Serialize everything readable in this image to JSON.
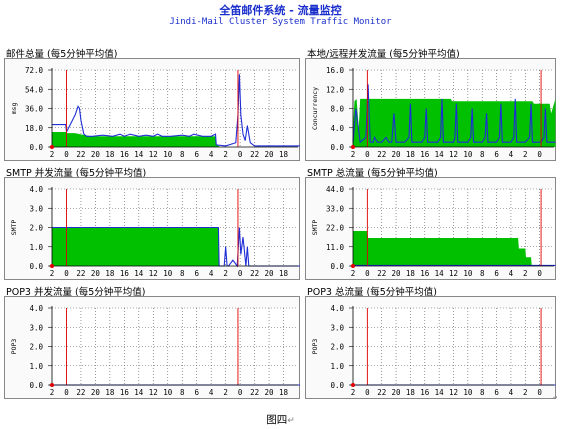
{
  "header": {
    "title": "全笛邮件系统 - 流量监控",
    "subtitle": "Jindi-Mail Cluster System Traffic Monitor"
  },
  "caption": "图四",
  "caption_mark": "↵",
  "corner_mark": "↵",
  "colors": {
    "fill": "#00c000",
    "line": "#1f2fd6",
    "marker": "#e00000",
    "grid": "#555555",
    "plot_bg": "#ffffff",
    "frame": "#888888"
  },
  "panels": [
    {
      "title": "邮件总量 (每5分钟平均值)",
      "ylabel": "msg",
      "ytick_labels": [
        "72.0",
        "54.0",
        "36.0",
        "18.0",
        "0.0"
      ]
    },
    {
      "title": "本地/远程并发流量 (每5分钟平均值)",
      "ylabel": "Concurrency",
      "ytick_labels": [
        "16.0",
        "12.0",
        "8.0",
        "4.0",
        "0.0"
      ]
    },
    {
      "title": "SMTP 并发流量 (每5分钟平均值)",
      "ylabel": "SMTP",
      "ytick_labels": [
        "4.0",
        "3.0",
        "2.0",
        "1.0",
        "0.0"
      ]
    },
    {
      "title": "SMTP 总流量 (每5分钟平均值)",
      "ylabel": "SMTP",
      "ytick_labels": [
        "44.0",
        "33.0",
        "22.0",
        "11.0",
        "0.0"
      ]
    },
    {
      "title": "POP3 并发流量 (每5分钟平均值)",
      "ylabel": "POP3",
      "ytick_labels": [
        "4.0",
        "3.0",
        "2.0",
        "1.0",
        "0.0"
      ]
    },
    {
      "title": "POP3 总流量 (每5分钟平均值)",
      "ylabel": "POP3",
      "ytick_labels": [
        "4.0",
        "3.0",
        "2.0",
        "1.0",
        "0.0"
      ]
    }
  ],
  "chart_data": [
    {
      "type": "area",
      "ylabel": "msg",
      "ylim": [
        0,
        72
      ],
      "grid": true,
      "x_tick_labels": [
        "2",
        "0",
        "22",
        "20",
        "18",
        "16",
        "14",
        "12",
        "10",
        "8",
        "6",
        "4",
        "2",
        "0",
        "22",
        "20",
        "18"
      ],
      "fill": {
        "x": [
          0,
          0.95,
          1,
          1.6,
          1.9,
          2.3,
          2.7,
          3.1,
          4,
          5,
          6,
          7,
          8,
          9,
          10,
          11,
          11.3,
          11.35,
          11.6,
          12,
          13,
          14,
          15,
          16,
          17.3
        ],
        "y": [
          14,
          14,
          13,
          13,
          12,
          11,
          10,
          10,
          10,
          10,
          10,
          10,
          10,
          10,
          10,
          10,
          10,
          3,
          0,
          0,
          0,
          0,
          0,
          0,
          0
        ]
      },
      "line": {
        "x": [
          0,
          0.95,
          1,
          1.3,
          1.6,
          1.8,
          1.9,
          2.0,
          2.2,
          2.4,
          2.8,
          3.5,
          4.2,
          4.7,
          5.0,
          5.4,
          6.0,
          6.5,
          7.0,
          7.3,
          7.6,
          8.2,
          9.0,
          9.5,
          9.8,
          10.4,
          11.0,
          11.3,
          11.35,
          12.0,
          12.7,
          12.85,
          12.95,
          13.05,
          13.2,
          13.35,
          13.5,
          13.7,
          14,
          15,
          16,
          17.3
        ],
        "y": [
          21,
          21,
          14,
          22,
          30,
          38,
          36,
          25,
          12,
          10,
          10,
          11,
          10,
          12,
          10,
          12,
          10,
          11,
          10,
          12,
          10,
          10,
          11,
          10,
          12,
          10,
          10,
          12,
          2,
          1,
          4,
          30,
          68,
          30,
          12,
          6,
          20,
          4,
          1,
          1,
          1,
          1
        ]
      },
      "markers_x": [
        1,
        12.85
      ]
    },
    {
      "type": "area",
      "ylabel": "Concurrency",
      "ylim": [
        0,
        16
      ],
      "grid": true,
      "x_tick_labels": [
        "2",
        "0",
        "22",
        "20",
        "18",
        "16",
        "14",
        "12",
        "10",
        "8",
        "6",
        "4",
        "2",
        "0"
      ],
      "fill": {
        "x": [
          0,
          0.1,
          0.25,
          0.4,
          0.5,
          1.2,
          1.3,
          6.8,
          6.9,
          12.5,
          12.6,
          13.7,
          13.8,
          14.1
        ],
        "y": [
          4,
          9.5,
          10,
          4,
          10,
          10,
          10,
          10,
          9.5,
          9.5,
          9,
          9,
          7,
          10
        ]
      },
      "line": {
        "x": [
          0,
          0.2,
          0.5,
          0.9,
          1.05,
          1.2,
          1.4,
          1.5,
          1.7,
          2.0,
          2.3,
          2.5,
          2.7,
          2.85,
          3.0,
          3.3,
          3.6,
          3.9,
          4.0,
          4.1,
          4.4,
          4.8,
          5.0,
          5.1,
          5.2,
          5.5,
          5.9,
          6.1,
          6.2,
          6.3,
          6.6,
          7.0,
          7.1,
          7.2,
          7.3,
          7.6,
          8.0,
          8.2,
          8.3,
          8.4,
          8.7,
          9.0,
          9.2,
          9.3,
          9.4,
          9.7,
          10.0,
          10.2,
          10.3,
          10.4,
          10.7,
          11.0,
          11.2,
          11.3,
          11.4,
          11.7,
          12.0,
          12.3,
          12.4,
          12.5,
          12.8,
          13.1,
          13.3,
          13.4,
          13.5,
          13.8,
          14.1
        ],
        "y": [
          1,
          8,
          1,
          2,
          13,
          1,
          1,
          2,
          1,
          1,
          2,
          1,
          1,
          7,
          1,
          1,
          1,
          2,
          9,
          1,
          1,
          1,
          2,
          8,
          1,
          1,
          1,
          2,
          10,
          1,
          1,
          1,
          2,
          9,
          1,
          1,
          1,
          2,
          8,
          1,
          1,
          1,
          2,
          7,
          1,
          1,
          1,
          2,
          9,
          1,
          1,
          1,
          2,
          10,
          1,
          1,
          1,
          2,
          9,
          1,
          1,
          1,
          2,
          8,
          1,
          1,
          1
        ]
      },
      "markers_x": [
        1,
        13.1
      ]
    },
    {
      "type": "area",
      "ylabel": "SMTP",
      "ylim": [
        0,
        4
      ],
      "grid": true,
      "x_tick_labels": [
        "2",
        "0",
        "22",
        "20",
        "18",
        "16",
        "14",
        "12",
        "10",
        "8",
        "6",
        "4",
        "2",
        "0",
        "22",
        "20",
        "18"
      ],
      "fill": {
        "x": [
          0,
          11.5,
          11.55,
          17.3
        ],
        "y": [
          2,
          2,
          0,
          0
        ]
      },
      "line": {
        "x": [
          0,
          11.5,
          11.55,
          11.9,
          12.0,
          12.1,
          12.2,
          12.5,
          12.8,
          12.95,
          13.05,
          13.2,
          13.4,
          13.5,
          13.6,
          13.8,
          14.0,
          17.3
        ],
        "y": [
          2,
          2,
          0,
          0,
          1,
          0,
          0,
          0.3,
          0,
          2,
          0.6,
          1.5,
          0,
          1,
          0,
          0,
          0,
          0
        ]
      },
      "markers_x": [
        1,
        12.85
      ]
    },
    {
      "type": "area",
      "ylabel": "SMTP",
      "ylim": [
        0,
        44
      ],
      "grid": true,
      "x_tick_labels": [
        "2",
        "0",
        "22",
        "20",
        "18",
        "16",
        "14",
        "12",
        "10",
        "8",
        "6",
        "4",
        "2",
        "0"
      ],
      "fill": {
        "x": [
          0,
          1.0,
          1.05,
          11.5,
          11.55,
          12.0,
          12.05,
          12.4,
          12.45,
          14.1
        ],
        "y": [
          20,
          20,
          16,
          16,
          10,
          10,
          5,
          5,
          0,
          0
        ]
      },
      "line": {
        "x": [
          0,
          14.1
        ],
        "y": [
          0.3,
          0.3
        ]
      },
      "markers_x": [
        1,
        13.1
      ]
    },
    {
      "type": "area",
      "ylabel": "POP3",
      "ylim": [
        0,
        4
      ],
      "grid": true,
      "x_tick_labels": [
        "2",
        "0",
        "22",
        "20",
        "18",
        "16",
        "14",
        "12",
        "10",
        "8",
        "6",
        "4",
        "2",
        "0",
        "22",
        "20",
        "18"
      ],
      "fill": {
        "x": [
          0,
          17.3
        ],
        "y": [
          0,
          0
        ]
      },
      "line": {
        "x": [
          0,
          17.3
        ],
        "y": [
          0,
          0
        ]
      },
      "markers_x": [
        1,
        12.85
      ]
    },
    {
      "type": "area",
      "ylabel": "POP3",
      "ylim": [
        0,
        4
      ],
      "grid": true,
      "x_tick_labels": [
        "2",
        "0",
        "22",
        "20",
        "18",
        "16",
        "14",
        "12",
        "10",
        "8",
        "6",
        "4",
        "2",
        "0"
      ],
      "fill": {
        "x": [
          0,
          14.1
        ],
        "y": [
          0,
          0
        ]
      },
      "line": {
        "x": [
          0,
          14.1
        ],
        "y": [
          0,
          0
        ]
      },
      "markers_x": [
        1,
        13.1
      ]
    }
  ]
}
